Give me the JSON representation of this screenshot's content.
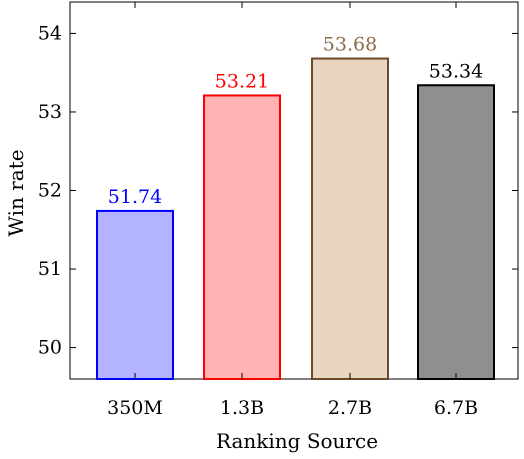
{
  "chart_data": {
    "type": "bar",
    "title": "",
    "xlabel": "Ranking Source",
    "ylabel": "Win rate",
    "categories": [
      "350M",
      "1.3B",
      "2.7B",
      "6.7B"
    ],
    "values": [
      51.74,
      53.21,
      53.68,
      53.34
    ],
    "value_labels": [
      "51.74",
      "53.21",
      "53.68",
      "53.34"
    ],
    "ylim": [
      49.6,
      54.4
    ],
    "yticks": [
      50,
      51,
      52,
      53,
      54
    ],
    "ytick_labels": [
      "50",
      "51",
      "52",
      "53",
      "54"
    ],
    "grid": false,
    "legend": "none",
    "colors": {
      "fill": [
        "#b3b3ff",
        "#ffb3b3",
        "#e8d5c0",
        "#8f8f8f"
      ],
      "stroke": [
        "#0000ff",
        "#ff0000",
        "#6b4a2b",
        "#000000"
      ],
      "label": [
        "#0000ff",
        "#ff0000",
        "#8b6a4a",
        "#000000"
      ]
    }
  }
}
